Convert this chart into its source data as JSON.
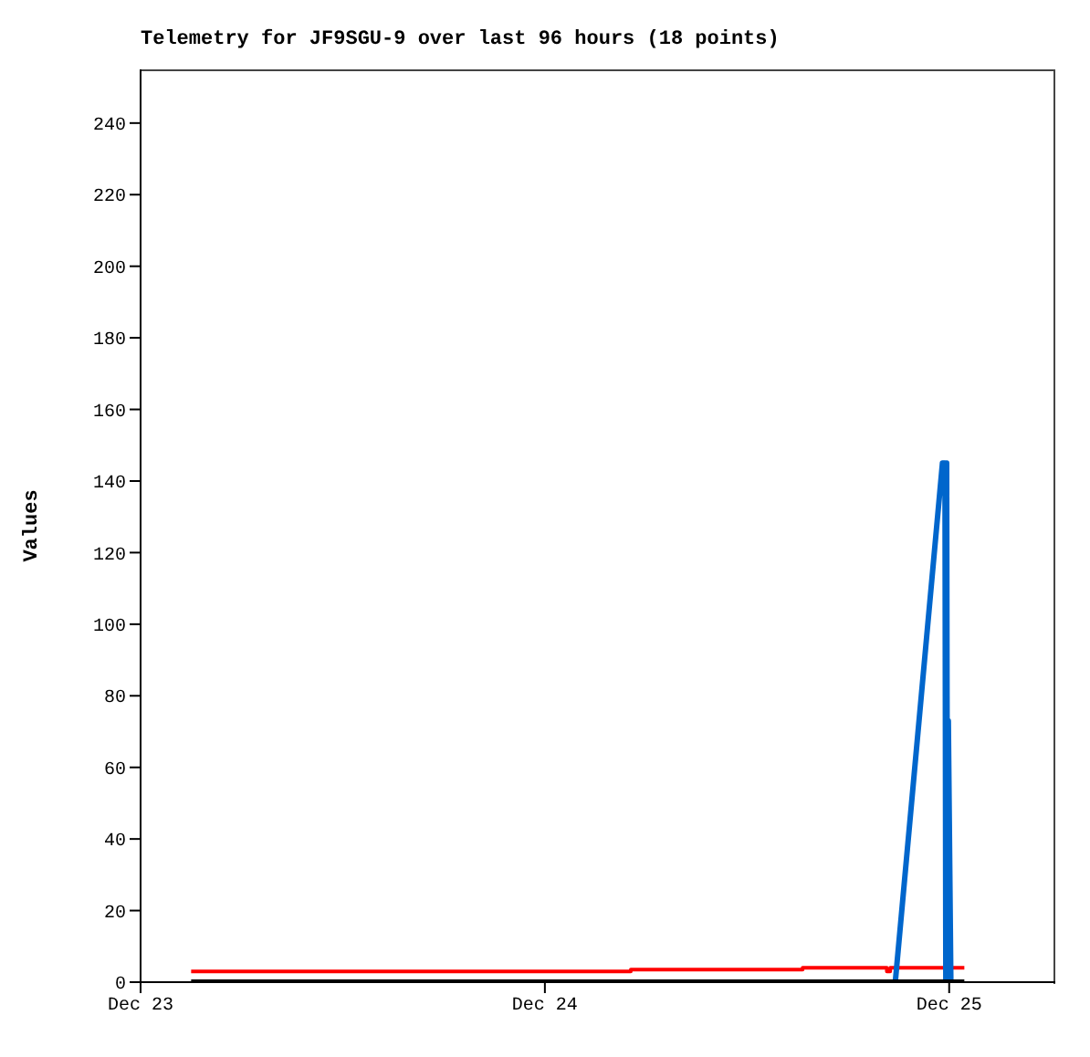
{
  "chart_data": {
    "type": "line",
    "title": "Telemetry for JF9SGU-9 over last 96 hours (18 points)",
    "ylabel": "Values",
    "xlim": [
      "--12-23T00:00",
      "--12-25T06:18"
    ],
    "xticks": [
      {
        "value": "--12-23",
        "label": "Dec 23"
      },
      {
        "value": "--12-24",
        "label": "Dec 24"
      },
      {
        "value": "--12-25",
        "label": "Dec 25"
      }
    ],
    "ylim": [
      0,
      255
    ],
    "yticks": [
      0,
      20,
      40,
      60,
      80,
      100,
      120,
      140,
      160,
      180,
      200,
      220,
      240
    ],
    "series": [
      {
        "type": "step",
        "color": "#ff0000",
        "x": [
          "--12-23T03:00",
          "--12-24T05:06",
          "--12-24T15:18",
          "--12-24T20:18",
          "--12-24T20:30",
          "--12-25T00:54"
        ],
        "values": [
          3,
          3.5,
          4,
          3,
          4,
          4
        ]
      },
      {
        "color": "#0066cc",
        "x": [
          "--12-24T20:48",
          "--12-24T23:36",
          "--12-24T23:45",
          "--12-24T23:48",
          "--12-24T23:51",
          "--12-24T23:54",
          "--12-24T23:57",
          "--12-25T00:06"
        ],
        "values": [
          0,
          145,
          145,
          0,
          145,
          0,
          73,
          0
        ]
      },
      {
        "color": "#000000",
        "x": [
          "--12-23T03:00",
          "--12-25T00:54"
        ],
        "values": [
          0,
          0
        ]
      }
    ]
  }
}
